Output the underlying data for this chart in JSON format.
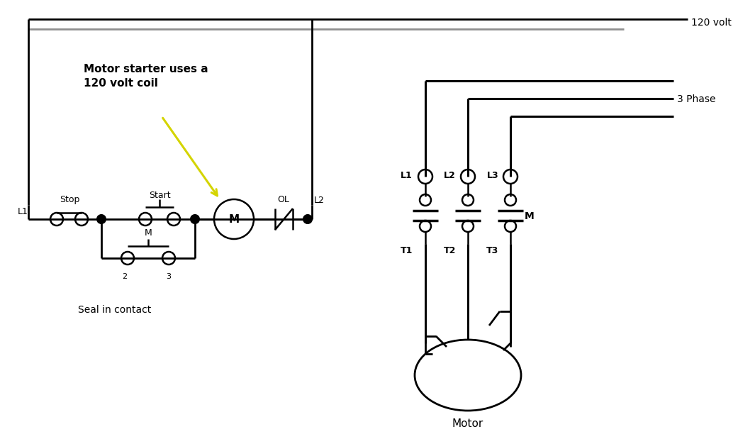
{
  "bg_color": "#ffffff",
  "line_color": "#000000",
  "gray_line_color": "#909090",
  "yellow_color": "#d4d400",
  "label_120volt": "120 volt",
  "label_3phase": "3 Phase",
  "label_L1_left": "L1",
  "label_L2": "L2",
  "label_Stop": "Stop",
  "label_Start": "Start",
  "label_M_coil": "M",
  "label_OL": "OL",
  "label_M_seal": "M",
  "label_2": "2",
  "label_3": "3",
  "label_seal": "Seal in contact",
  "label_motor_note": "Motor starter uses a\n120 volt coil",
  "label_L1r": "L1",
  "label_L2r": "L2",
  "label_L3r": "L3",
  "label_T1": "T1",
  "label_T2": "T2",
  "label_T3": "T3",
  "label_M_right": "M",
  "label_Motor": "Motor"
}
